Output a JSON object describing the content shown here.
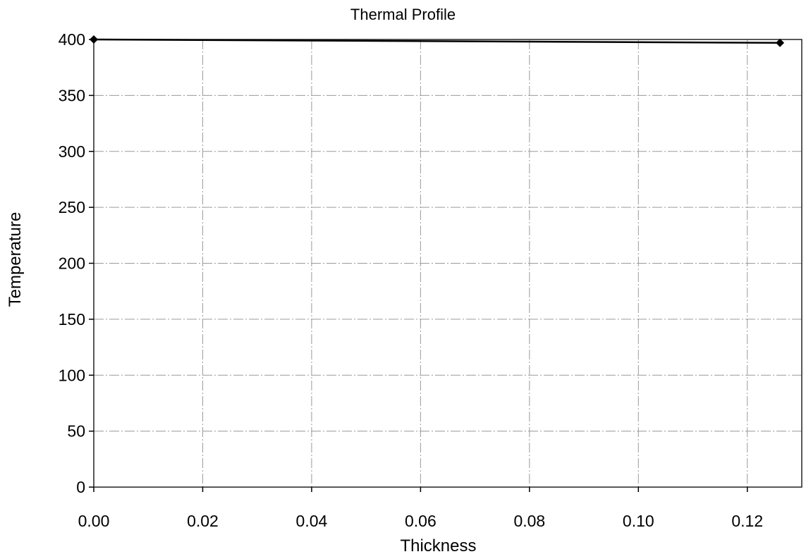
{
  "chart_data": {
    "type": "scatter",
    "title": "Thermal Profile",
    "xlabel": "Thickness",
    "ylabel": "Temperature",
    "xlim": [
      0.0,
      0.13
    ],
    "ylim": [
      0,
      400
    ],
    "x_ticks": [
      "0.00",
      "0.02",
      "0.04",
      "0.06",
      "0.08",
      "0.10",
      "0.12"
    ],
    "y_ticks": [
      "0",
      "50",
      "100",
      "150",
      "200",
      "250",
      "300",
      "350",
      "400"
    ],
    "grid": true,
    "legend": "none",
    "series": [
      {
        "x": [
          0.0,
          0.126
        ],
        "y": [
          400,
          397
        ],
        "marker": "diamond",
        "line": true,
        "color": "#000000"
      }
    ]
  }
}
